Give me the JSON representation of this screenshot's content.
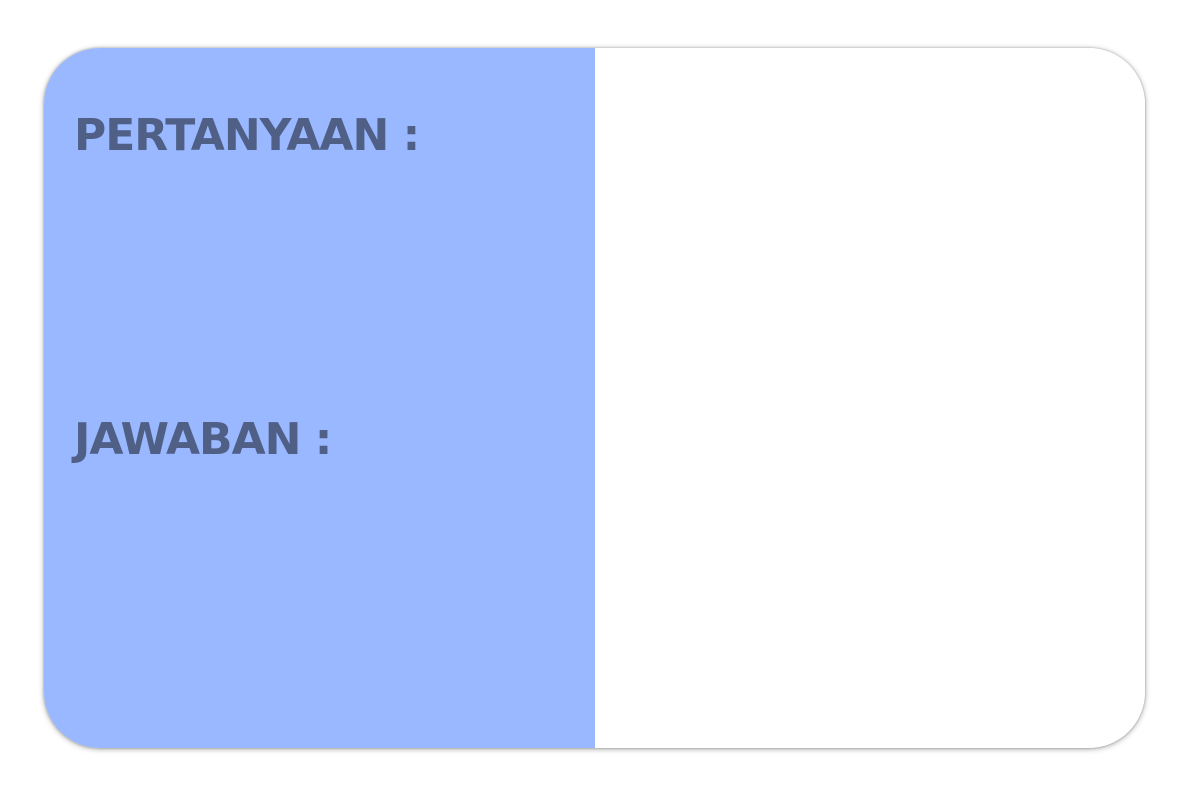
{
  "card": {
    "question_label": "PERTANYAAN :",
    "answer_label": "JAWABAN :"
  },
  "colors": {
    "left_panel": "#99b8ff",
    "label_text": "#4f5f86",
    "right_panel": "#ffffff"
  }
}
